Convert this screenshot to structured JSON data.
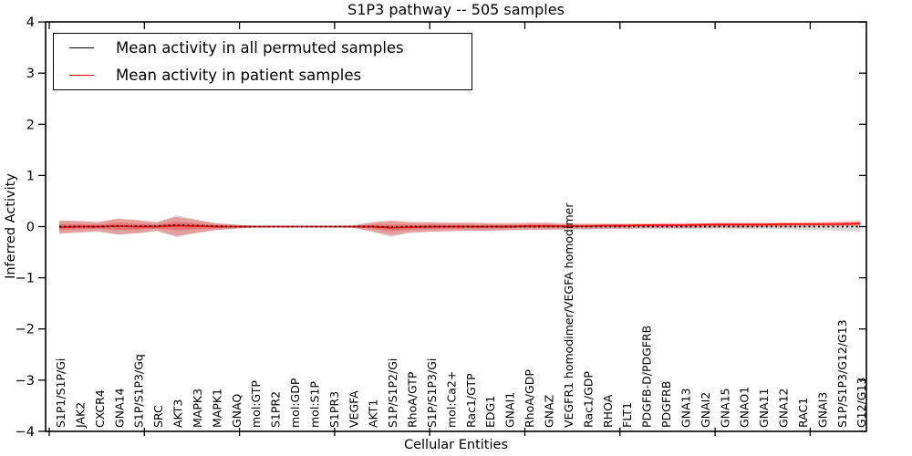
{
  "chart_data": {
    "type": "line",
    "title": "S1P3 pathway -- 505 samples",
    "xlabel": "Cellular Entities",
    "ylabel": "Inferred Activity",
    "ylim": [
      -4,
      4
    ],
    "yticks": [
      4,
      3,
      2,
      1,
      0,
      -1,
      -2,
      -3,
      -4
    ],
    "ytick_labels": [
      "4",
      "3",
      "2",
      "1",
      "0",
      "−1",
      "−2",
      "−3",
      "−4"
    ],
    "grid": false,
    "legend_position": "upper left",
    "categories": [
      "S1P1/S1P/Gi",
      "JAK2",
      "CXCR4",
      "GNA14",
      "S1P/S1P3/Gq",
      "SRC",
      "AKT3",
      "MAPK3",
      "MAPK1",
      "GNAQ",
      "mol:GTP",
      "S1PR2",
      "mol:GDP",
      "mol:S1P",
      "S1PR3",
      "VEGFA",
      "AKT1",
      "S1P/S1P2/Gi",
      "RhoA/GTP",
      "S1P/S1P3/Gi",
      "mol:Ca2+",
      "Rac1/GTP",
      "EDG1",
      "GNAI1",
      "RhoA/GDP",
      "GNAZ",
      "VEGFR1 homodimer/VEGFA homodimer",
      "Rac1/GDP",
      "RHOA",
      "FLT1",
      "PDGFB-D/PDGFRB",
      "PDGFRB",
      "GNA13",
      "GNAI2",
      "GNA15",
      "GNAO1",
      "GNA11",
      "GNA12",
      "RAC1",
      "GNAI3",
      "S1P/S1P3/G12/G13",
      "G12/G13"
    ],
    "series": [
      {
        "name": "Mean activity in all permuted samples",
        "color": "#000000",
        "style": "dotted",
        "values": [
          0,
          0,
          0,
          0.01,
          0.01,
          0.01,
          0.03,
          0.02,
          0.01,
          0,
          0,
          0,
          0,
          0,
          0,
          0,
          0,
          -0.01,
          0,
          0,
          0,
          0,
          0,
          0,
          0,
          0,
          0,
          0,
          0,
          0,
          0,
          0,
          0,
          0,
          0,
          0,
          0,
          0,
          0,
          0,
          0,
          0
        ]
      },
      {
        "name": "Mean activity in patient samples",
        "color": "#ff0000",
        "style": "solid",
        "values": [
          -0.01,
          0,
          0,
          0.01,
          0,
          0,
          0.02,
          0.01,
          0,
          0,
          0,
          0,
          0,
          0,
          0,
          0,
          0,
          -0.02,
          -0.01,
          0,
          0,
          0,
          0,
          0,
          0.01,
          0.01,
          0.01,
          0.01,
          0.02,
          0.02,
          0.03,
          0.03,
          0.03,
          0.04,
          0.04,
          0.04,
          0.04,
          0.05,
          0.05,
          0.05,
          0.05,
          0.06
        ]
      }
    ],
    "bands": [
      {
        "name": "permuted-samples-spread",
        "color": "#808080",
        "opacity": 0.3,
        "upper": [
          0.12,
          0.11,
          0.09,
          0.15,
          0.12,
          0.08,
          0.22,
          0.14,
          0.07,
          0.04,
          0.02,
          0.015,
          0.015,
          0.015,
          0.015,
          0.02,
          0.09,
          0.11,
          0.08,
          0.08,
          0.07,
          0.07,
          0.06,
          0.06,
          0.06,
          0.06,
          0.05,
          0.05,
          0.05,
          0.05,
          0.05,
          0.05,
          0.05,
          0.05,
          0.05,
          0.05,
          0.05,
          0.05,
          0.05,
          0.05,
          0.06,
          0.07
        ],
        "lower": [
          -0.14,
          -0.12,
          -0.1,
          -0.16,
          -0.13,
          -0.09,
          -0.21,
          -0.13,
          -0.07,
          -0.04,
          -0.02,
          -0.015,
          -0.015,
          -0.015,
          -0.015,
          -0.02,
          -0.1,
          -0.2,
          -0.12,
          -0.1,
          -0.09,
          -0.08,
          -0.08,
          -0.07,
          -0.07,
          -0.06,
          -0.06,
          -0.06,
          -0.05,
          -0.05,
          -0.05,
          -0.05,
          -0.05,
          -0.05,
          -0.05,
          -0.05,
          -0.05,
          -0.05,
          -0.06,
          -0.07,
          -0.08,
          -0.1
        ]
      },
      {
        "name": "patient-samples-spread",
        "color": "#ff0000",
        "opacity": 0.27,
        "upper": [
          0.12,
          0.11,
          0.09,
          0.16,
          0.13,
          0.09,
          0.19,
          0.13,
          0.07,
          0.04,
          0.015,
          0.01,
          0.01,
          0.01,
          0.01,
          0.02,
          0.08,
          0.12,
          0.09,
          0.09,
          0.08,
          0.08,
          0.07,
          0.07,
          0.08,
          0.08,
          0.06,
          0.06,
          0.06,
          0.06,
          0.06,
          0.07,
          0.07,
          0.07,
          0.08,
          0.08,
          0.08,
          0.08,
          0.08,
          0.09,
          0.1,
          0.12
        ],
        "lower": [
          -0.13,
          -0.11,
          -0.09,
          -0.15,
          -0.13,
          -0.08,
          -0.18,
          -0.12,
          -0.07,
          -0.04,
          -0.015,
          -0.01,
          -0.01,
          -0.01,
          -0.01,
          -0.02,
          -0.09,
          -0.17,
          -0.11,
          -0.1,
          -0.09,
          -0.08,
          -0.08,
          -0.07,
          -0.06,
          -0.06,
          -0.05,
          -0.05,
          -0.04,
          -0.04,
          -0.03,
          -0.03,
          -0.03,
          -0.02,
          -0.02,
          -0.02,
          -0.01,
          -0.01,
          0.0,
          0.0,
          0.01,
          0.01
        ]
      }
    ]
  }
}
